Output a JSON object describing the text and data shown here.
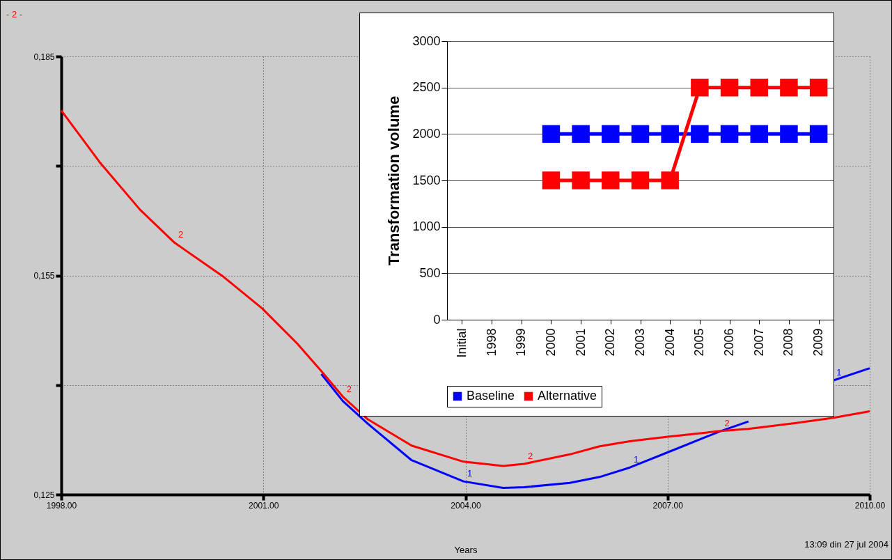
{
  "chart_data": [
    {
      "type": "line",
      "xlabel": "Years",
      "x": [
        1998,
        1998.58,
        1999.17,
        1999.68,
        2000.41,
        2000.98,
        2001.5,
        2001.86,
        2002.18,
        2002.55,
        2003.2,
        2003.97,
        2004.56,
        2004.87,
        2005.55,
        2005.99,
        2006.44,
        2006.98,
        2007.79,
        2008.2,
        2008.91,
        2009.45,
        2010
      ],
      "series": [
        {
          "name": "1",
          "color": "#0000ff",
          "values": [
            null,
            null,
            null,
            null,
            null,
            null,
            null,
            0.1415,
            0.1378,
            0.1347,
            0.1297,
            0.1268,
            0.1259,
            0.126,
            0.1266,
            0.1274,
            0.1287,
            0.1307,
            0.1337,
            0.135,
            null,
            0.1406,
            0.1423
          ]
        },
        {
          "name": "2",
          "color": "#ff0000",
          "values": [
            0.1776,
            0.1704,
            0.164,
            0.1595,
            0.1548,
            0.1505,
            0.1457,
            0.1419,
            0.1384,
            0.1353,
            0.1317,
            0.1295,
            0.1289,
            0.1292,
            0.1305,
            0.1316,
            0.1323,
            0.1329,
            0.1337,
            0.134,
            0.1348,
            0.1355,
            0.1364
          ]
        }
      ],
      "xlim": [
        1998,
        2010
      ],
      "xticks": [
        {
          "value": 1998,
          "label": "1998.00"
        },
        {
          "value": 2001,
          "label": "2001.00"
        },
        {
          "value": 2004,
          "label": "2004.00"
        },
        {
          "value": 2007,
          "label": "2007.00"
        },
        {
          "value": 2010,
          "label": "2010.00"
        }
      ],
      "ylim": [
        0.125,
        0.185
      ],
      "yticks": [
        {
          "value": 0.125,
          "label": "0,125"
        },
        {
          "value": 0.14,
          "label": null
        },
        {
          "value": 0.155,
          "label": "0,155"
        },
        {
          "value": 0.17,
          "label": null
        },
        {
          "value": 0.185,
          "label": "0,185"
        }
      ],
      "grid": true,
      "line_style": "solid",
      "marker": "none",
      "annotations": [
        "- 2 -",
        "13:09    din 27 jul 2004"
      ]
    },
    {
      "type": "line",
      "ylabel": "Transformation volume",
      "categories": [
        "Initial",
        "1998",
        "1999",
        "2000",
        "2001",
        "2002",
        "2003",
        "2004",
        "2005",
        "2006",
        "2007",
        "2008",
        "2009"
      ],
      "series": [
        {
          "name": "Baseline",
          "color": "#0000ff",
          "values": [
            null,
            null,
            null,
            2000,
            2000,
            2000,
            2000,
            2000,
            2000,
            2000,
            2000,
            2000,
            2000
          ]
        },
        {
          "name": "Alternative",
          "color": "#ff0000",
          "values": [
            null,
            null,
            null,
            1500,
            1500,
            1500,
            1500,
            1500,
            2500,
            2500,
            2500,
            2500,
            2500
          ]
        }
      ],
      "ylim": [
        0,
        3000
      ],
      "yticks": [
        0,
        500,
        1000,
        1500,
        2000,
        2500,
        3000
      ],
      "grid": "y",
      "legend": "bottom",
      "marker": "square",
      "line_style": "solid"
    }
  ]
}
